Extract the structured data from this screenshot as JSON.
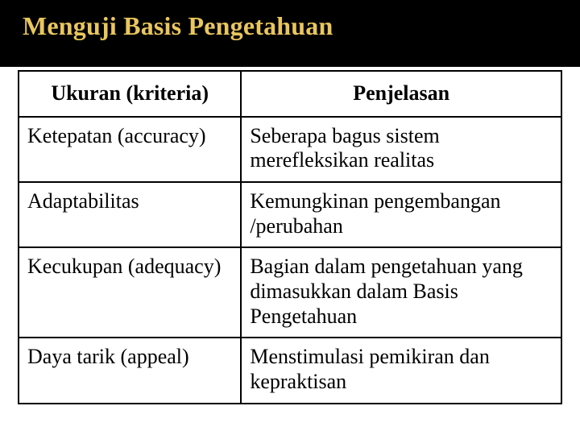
{
  "title": "Menguji Basis Pengetahuan",
  "colors": {
    "header_bg": "#000000",
    "title_color": "#e9c65e",
    "page_bg": "#ffffff",
    "border_color": "#000000",
    "text_color": "#000000"
  },
  "typography": {
    "title_fontsize_pt": 24,
    "cell_fontsize_pt": 20,
    "font_family": "Times New Roman"
  },
  "table": {
    "type": "table",
    "column_widths_pct": [
      41,
      59
    ],
    "columns": [
      "Ukuran (kriteria)",
      "Penjelasan"
    ],
    "rows": [
      [
        "Ketepatan (accuracy)",
        "Seberapa bagus sistem merefleksikan realitas"
      ],
      [
        "Adaptabilitas",
        "Kemungkinan pengembangan /perubahan"
      ],
      [
        "Kecukupan (adequacy)",
        "Bagian dalam pengetahuan yang dimasukkan dalam Basis Pengetahuan"
      ],
      [
        "Daya tarik (appeal)",
        "Menstimulasi pemikiran dan kepraktisan"
      ]
    ]
  }
}
